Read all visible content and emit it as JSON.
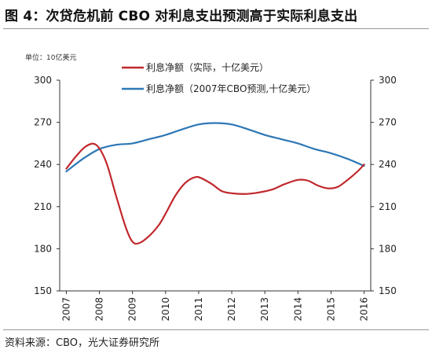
{
  "figure": {
    "title": "图 4：次贷危机前 CBO 对利息支出预测高于实际利息支出",
    "unit": "单位：10亿美元",
    "source": "资料来源：CBO，光大证券研究所"
  },
  "colors": {
    "actual": "#c0282d",
    "forecast": "#2e78b5",
    "axis": "#333333"
  },
  "chart_data": {
    "type": "line",
    "title": "图 4：次贷危机前 CBO 对利息支出预测高于实际利息支出",
    "ylabel": "单位：10亿美元",
    "xlabel": "",
    "ylim": [
      150,
      300
    ],
    "yticks": [
      150,
      180,
      210,
      240,
      270,
      300
    ],
    "xlim": [
      2006.8,
      2016.2
    ],
    "xticks": [
      "2007",
      "2008",
      "2009",
      "2010",
      "2011",
      "2012",
      "2013",
      "2014",
      "2015",
      "2016"
    ],
    "grid": false,
    "legend_position": "top-center",
    "series": [
      {
        "name": "利息净额（实际，十亿美元）",
        "color": "#c0282d",
        "x": [
          2007,
          2007.3,
          2007.6,
          2007.9,
          2008.2,
          2008.5,
          2008.8,
          2009.0,
          2009.2,
          2009.5,
          2009.8,
          2010.0,
          2010.3,
          2010.6,
          2010.9,
          2011.1,
          2011.4,
          2011.7,
          2012.0,
          2012.4,
          2012.8,
          2013.2,
          2013.6,
          2014.0,
          2014.3,
          2014.6,
          2014.9,
          2015.2,
          2015.5,
          2015.8,
          2016.0
        ],
        "y": [
          237,
          246,
          253,
          254,
          242,
          218,
          195,
          185,
          184,
          189,
          197,
          205,
          218,
          227,
          231,
          230,
          226,
          221,
          219.5,
          219,
          220,
          222,
          226,
          229,
          228.5,
          225,
          223,
          224,
          229,
          235,
          240
        ]
      },
      {
        "name": "利息净额（2007年CBO预测,十亿美元）",
        "color": "#2e78b5",
        "x": [
          2007,
          2007.5,
          2008,
          2008.5,
          2009,
          2009.5,
          2010,
          2010.5,
          2011,
          2011.5,
          2012,
          2012.5,
          2013,
          2013.5,
          2014,
          2014.5,
          2015,
          2015.5,
          2016
        ],
        "y": [
          235,
          244,
          251,
          254,
          255,
          258,
          261,
          265,
          268.5,
          269.5,
          268.5,
          265,
          261,
          258,
          255,
          251,
          248,
          244,
          239
        ]
      }
    ]
  }
}
